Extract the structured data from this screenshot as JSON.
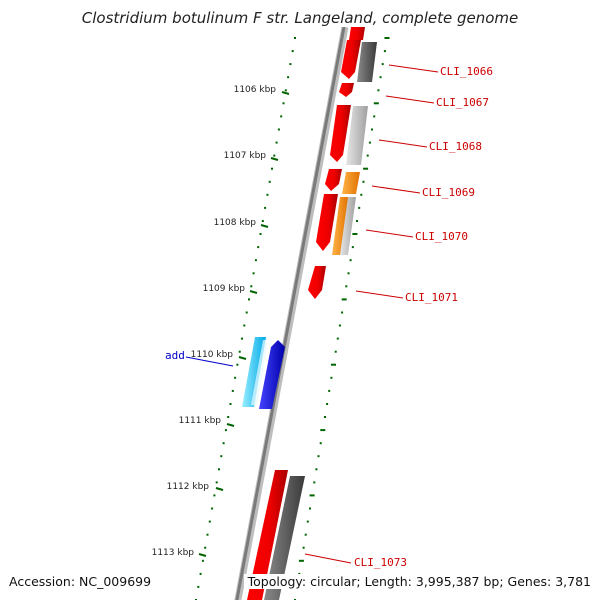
{
  "title": "Clostridium botulinum F str. Langeland, complete genome",
  "accession": "Accession: NC_009699",
  "topology": "Topology: circular; Length: 3,995,387 bp; Genes: 3,781",
  "ticks": [
    "1106 kbp",
    "1107 kbp",
    "1108 kbp",
    "1109 kbp",
    "1110 kbp",
    "1111 kbp",
    "1112 kbp",
    "1113 kbp"
  ],
  "gene_labels": [
    "CLI_1066",
    "CLI_1067",
    "CLI_1068",
    "CLI_1069",
    "CLI_1070",
    "CLI_1071",
    "CLI_1073"
  ],
  "added_label": "add",
  "colors": {
    "forward_gene": "#ff0000",
    "reverse_gene_dark": "#5a5a5a",
    "reverse_gene_light": "#bdbdbd",
    "orange_gene": "#ff8c00",
    "added_light": "#33ccff",
    "added_dark": "#0000ee",
    "tick": "#006400",
    "backbone": "#808080"
  }
}
